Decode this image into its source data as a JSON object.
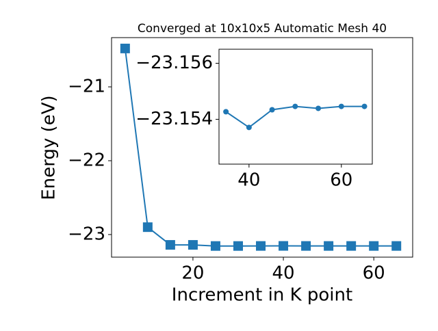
{
  "chart_data": [
    {
      "type": "line",
      "title": "Converged at 10x10x5 Automatic Mesh 40",
      "x_label": "Increment in K point",
      "y_label": "Energy (eV)",
      "x": [
        5,
        10,
        15,
        20,
        25,
        30,
        35,
        40,
        45,
        50,
        55,
        60,
        65
      ],
      "series": [
        {
          "name": "Energy",
          "color": "#1f77b4",
          "marker": "square",
          "values": [
            -20.48,
            -22.9,
            -23.14,
            -23.14,
            -23.155,
            -23.155,
            -23.1543,
            -23.1537,
            -23.1543,
            -23.1545,
            -23.1544,
            -23.1545,
            -23.1545
          ]
        }
      ],
      "xlim": [
        2,
        68.6
      ],
      "ylim": [
        -23.306,
        -20.333
      ],
      "xticks": [
        20,
        40,
        60
      ],
      "yticks": [
        {
          "value": -23,
          "label": "−23"
        },
        {
          "value": -22,
          "label": "−22"
        },
        {
          "value": -21,
          "label": "−21"
        }
      ]
    },
    {
      "type": "line",
      "x": [
        35,
        40,
        45,
        50,
        55,
        60,
        65
      ],
      "series": [
        {
          "name": "Energy",
          "color": "#1f77b4",
          "marker": "circle",
          "values": [
            -23.15427,
            -23.15371,
            -23.15434,
            -23.15446,
            -23.15439,
            -23.15446,
            -23.15446
          ]
        }
      ],
      "xlim": [
        33.5,
        66.7
      ],
      "ylim": [
        -23.1524,
        -23.1565
      ],
      "xticks": [
        40,
        60
      ],
      "yticks": [
        {
          "value": -23.154,
          "label": "−23.154"
        },
        {
          "value": -23.156,
          "label": "−23.156"
        }
      ]
    }
  ]
}
